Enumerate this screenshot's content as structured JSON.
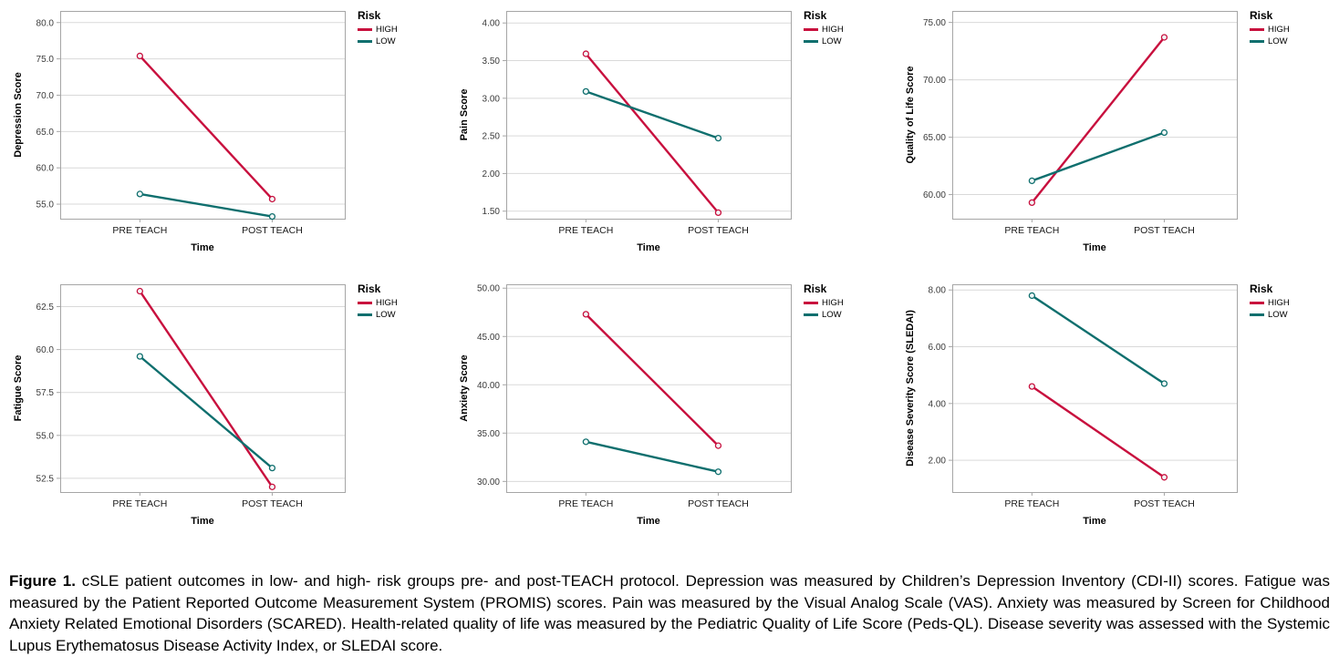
{
  "figure": {
    "caption_label": "Figure 1.",
    "caption_text": " cSLE patient outcomes in low- and high- risk groups pre- and post-TEACH protocol. Depression was measured by Children’s Depression Inventory (CDI-II) scores. Fatigue was measured by the Patient Reported Outcome Measurement System (PROMIS) scores. Pain was measured by the Visual Analog Scale (VAS). Anxiety was measured by Screen for Childhood Anxiety Related Emotional Disorders (SCARED). Health-related quality of life was measured by the Pediatric Quality of Life Score (Peds-QL). Disease severity was assessed with the Systemic Lupus Erythematosus Disease Activity Index, or SLEDAI score."
  },
  "legend": {
    "title": "Risk"
  },
  "colors": {
    "high": "#c8103e",
    "low": "#0f6f6e"
  },
  "chart_data": [
    {
      "id": "depression",
      "type": "line",
      "xlabel": "Time",
      "ylabel": "Depression Score",
      "categories": [
        "PRE TEACH",
        "POST TEACH"
      ],
      "ytick_values": [
        55,
        60,
        65,
        70,
        75,
        80
      ],
      "ytick_labels": [
        "55.0",
        "60.0",
        "65.0",
        "70.0",
        "75.0",
        "80.0"
      ],
      "ylim": [
        53.0,
        81.6
      ],
      "series": [
        {
          "name": "HIGH",
          "color": "#c8103e",
          "values": [
            75.4,
            55.7
          ]
        },
        {
          "name": "LOW",
          "color": "#0f6f6e",
          "values": [
            56.4,
            53.3
          ]
        }
      ]
    },
    {
      "id": "pain",
      "type": "line",
      "xlabel": "Time",
      "ylabel": "Pain Score",
      "categories": [
        "PRE TEACH",
        "POST TEACH"
      ],
      "ytick_values": [
        1.5,
        2.0,
        2.5,
        3.0,
        3.5,
        4.0
      ],
      "ytick_labels": [
        "1.50",
        "2.00",
        "2.50",
        "3.00",
        "3.50",
        "4.00"
      ],
      "ylim": [
        1.4,
        4.16
      ],
      "series": [
        {
          "name": "HIGH",
          "color": "#c8103e",
          "values": [
            3.59,
            1.48
          ]
        },
        {
          "name": "LOW",
          "color": "#0f6f6e",
          "values": [
            3.09,
            2.47
          ]
        }
      ]
    },
    {
      "id": "quality-of-life",
      "type": "line",
      "xlabel": "Time",
      "ylabel": "Quality of Life Score",
      "categories": [
        "PRE TEACH",
        "POST TEACH"
      ],
      "ytick_values": [
        60,
        65,
        70,
        75
      ],
      "ytick_labels": [
        "60.00",
        "65.00",
        "70.00",
        "75.00"
      ],
      "ylim": [
        57.9,
        76.0
      ],
      "series": [
        {
          "name": "HIGH",
          "color": "#c8103e",
          "values": [
            59.3,
            73.7
          ]
        },
        {
          "name": "LOW",
          "color": "#0f6f6e",
          "values": [
            61.2,
            65.4
          ]
        }
      ]
    },
    {
      "id": "fatigue",
      "type": "line",
      "xlabel": "Time",
      "ylabel": "Fatigue Score",
      "categories": [
        "PRE TEACH",
        "POST TEACH"
      ],
      "ytick_values": [
        52.5,
        55.0,
        57.5,
        60.0,
        62.5
      ],
      "ytick_labels": [
        "52.5",
        "55.0",
        "57.5",
        "60.0",
        "62.5"
      ],
      "ylim": [
        51.7,
        63.8
      ],
      "series": [
        {
          "name": "HIGH",
          "color": "#c8103e",
          "values": [
            63.4,
            52.0
          ]
        },
        {
          "name": "LOW",
          "color": "#0f6f6e",
          "values": [
            59.6,
            53.1
          ]
        }
      ]
    },
    {
      "id": "anxiety",
      "type": "line",
      "xlabel": "Time",
      "ylabel": "Anxiety Score",
      "categories": [
        "PRE TEACH",
        "POST TEACH"
      ],
      "ytick_values": [
        30,
        35,
        40,
        45,
        50
      ],
      "ytick_labels": [
        "30.00",
        "35.00",
        "40.00",
        "45.00",
        "50.00"
      ],
      "ylim": [
        28.9,
        50.4
      ],
      "series": [
        {
          "name": "HIGH",
          "color": "#c8103e",
          "values": [
            47.3,
            33.7
          ]
        },
        {
          "name": "LOW",
          "color": "#0f6f6e",
          "values": [
            34.1,
            31.0
          ]
        }
      ]
    },
    {
      "id": "disease-severity",
      "type": "line",
      "xlabel": "Time",
      "ylabel": "Disease Severity Score (SLEDAI)",
      "categories": [
        "PRE TEACH",
        "POST TEACH"
      ],
      "ytick_values": [
        2,
        4,
        6,
        8
      ],
      "ytick_labels": [
        "2.00",
        "4.00",
        "6.00",
        "8.00"
      ],
      "ylim": [
        0.88,
        8.2
      ],
      "series": [
        {
          "name": "HIGH",
          "color": "#c8103e",
          "values": [
            4.6,
            1.4
          ]
        },
        {
          "name": "LOW",
          "color": "#0f6f6e",
          "values": [
            7.8,
            4.7
          ]
        }
      ]
    }
  ]
}
